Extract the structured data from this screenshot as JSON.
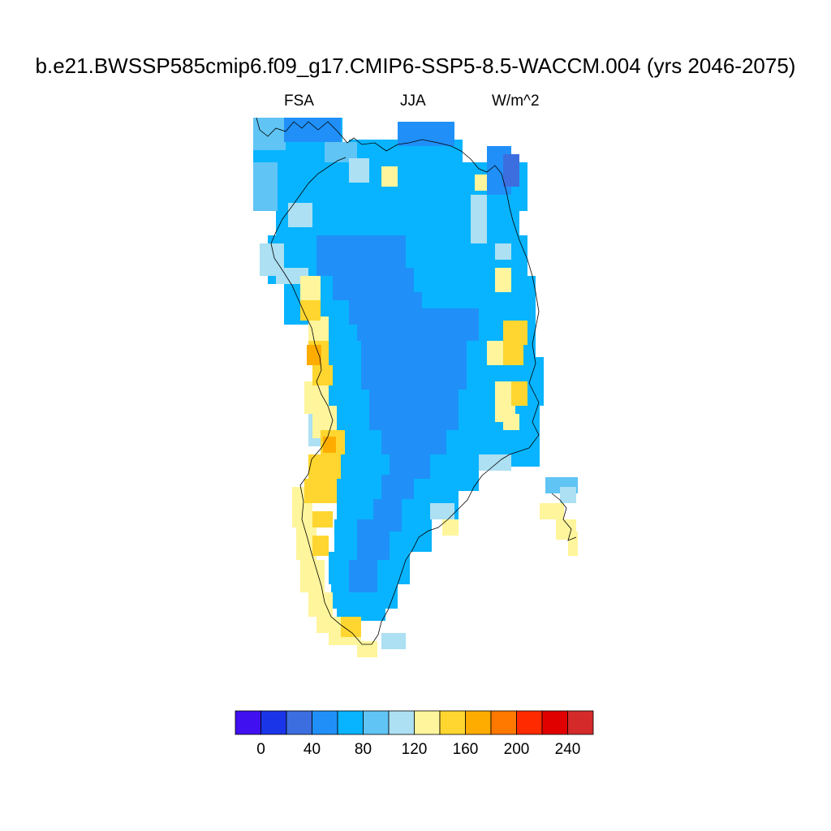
{
  "title": "b.e21.BWSSP585cmip6.f09_g17.CMIP6-SSP5-8.5-WACCM.004 (yrs 2046-2075)",
  "left_string": "FSA",
  "center_string": "JJA",
  "right_string": "W/m^2",
  "chart_data": {
    "type": "heatmap",
    "title": "b.e21.BWSSP585cmip6.f09_g17.CMIP6-SSP5-8.5-WACCM.004 (yrs 2046-2075)",
    "variable": "FSA",
    "season": "JJA",
    "units": "W/m^2",
    "region": "Greenland",
    "colorbar": {
      "levels": [
        -20,
        0,
        20,
        40,
        60,
        80,
        100,
        120,
        140,
        160,
        180,
        200,
        220,
        240
      ],
      "tick_labels": [
        "0",
        "40",
        "80",
        "120",
        "160",
        "200",
        "240"
      ],
      "tick_values": [
        0,
        40,
        80,
        120,
        160,
        200,
        240
      ],
      "colors": [
        "#4010f0",
        "#1a35e8",
        "#3c6ee0",
        "#2090f8",
        "#08b4ff",
        "#60c4f4",
        "#ace0f2",
        "#fff59c",
        "#ffd630",
        "#ffac00",
        "#ff7800",
        "#ff2a00",
        "#e00000",
        "#d42a2a"
      ]
    }
  }
}
